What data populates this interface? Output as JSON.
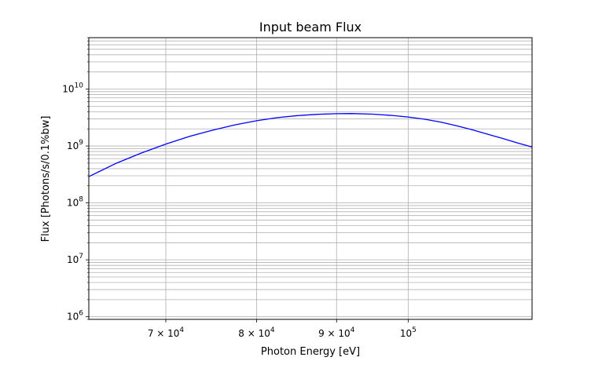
{
  "chart_data": {
    "type": "line",
    "title": "Input beam Flux",
    "xlabel": "Photon Energy [eV]",
    "ylabel": "Flux [Photons/s/0.1%bw]",
    "xscale": "log",
    "yscale": "log",
    "xlim": [
      62500,
      120000
    ],
    "ylim": [
      900000,
      80000000000
    ],
    "grid": "major-and-minor",
    "x_ticks": [
      {
        "value": 70000,
        "mant": "7",
        "exp": "4"
      },
      {
        "value": 80000,
        "mant": "8",
        "exp": "4"
      },
      {
        "value": 90000,
        "mant": "9",
        "exp": "4"
      },
      {
        "value": 100000,
        "mant": "",
        "exp": "5"
      }
    ],
    "y_ticks": [
      {
        "value": 1000000,
        "exp": "6"
      },
      {
        "value": 10000000,
        "exp": "7"
      },
      {
        "value": 100000000,
        "exp": "8"
      },
      {
        "value": 1000000000,
        "exp": "9"
      },
      {
        "value": 10000000000,
        "exp": "10"
      }
    ],
    "series": [
      {
        "color": "#0000ff",
        "x": [
          62500,
          65000,
          67500,
          70000,
          72500,
          75000,
          77500,
          80000,
          82500,
          85000,
          87500,
          90000,
          92000,
          95000,
          97500,
          100000,
          102500,
          105000,
          107500,
          110000,
          112500,
          115000,
          117500,
          120000
        ],
        "y": [
          290000000,
          490000000,
          750000000,
          1080000000,
          1480000000,
          1900000000,
          2350000000,
          2780000000,
          3150000000,
          3420000000,
          3600000000,
          3700000000,
          3720000000,
          3620000000,
          3450000000,
          3230000000,
          2950000000,
          2620000000,
          2250000000,
          1910000000,
          1600000000,
          1350000000,
          1130000000,
          960000000
        ]
      }
    ]
  }
}
